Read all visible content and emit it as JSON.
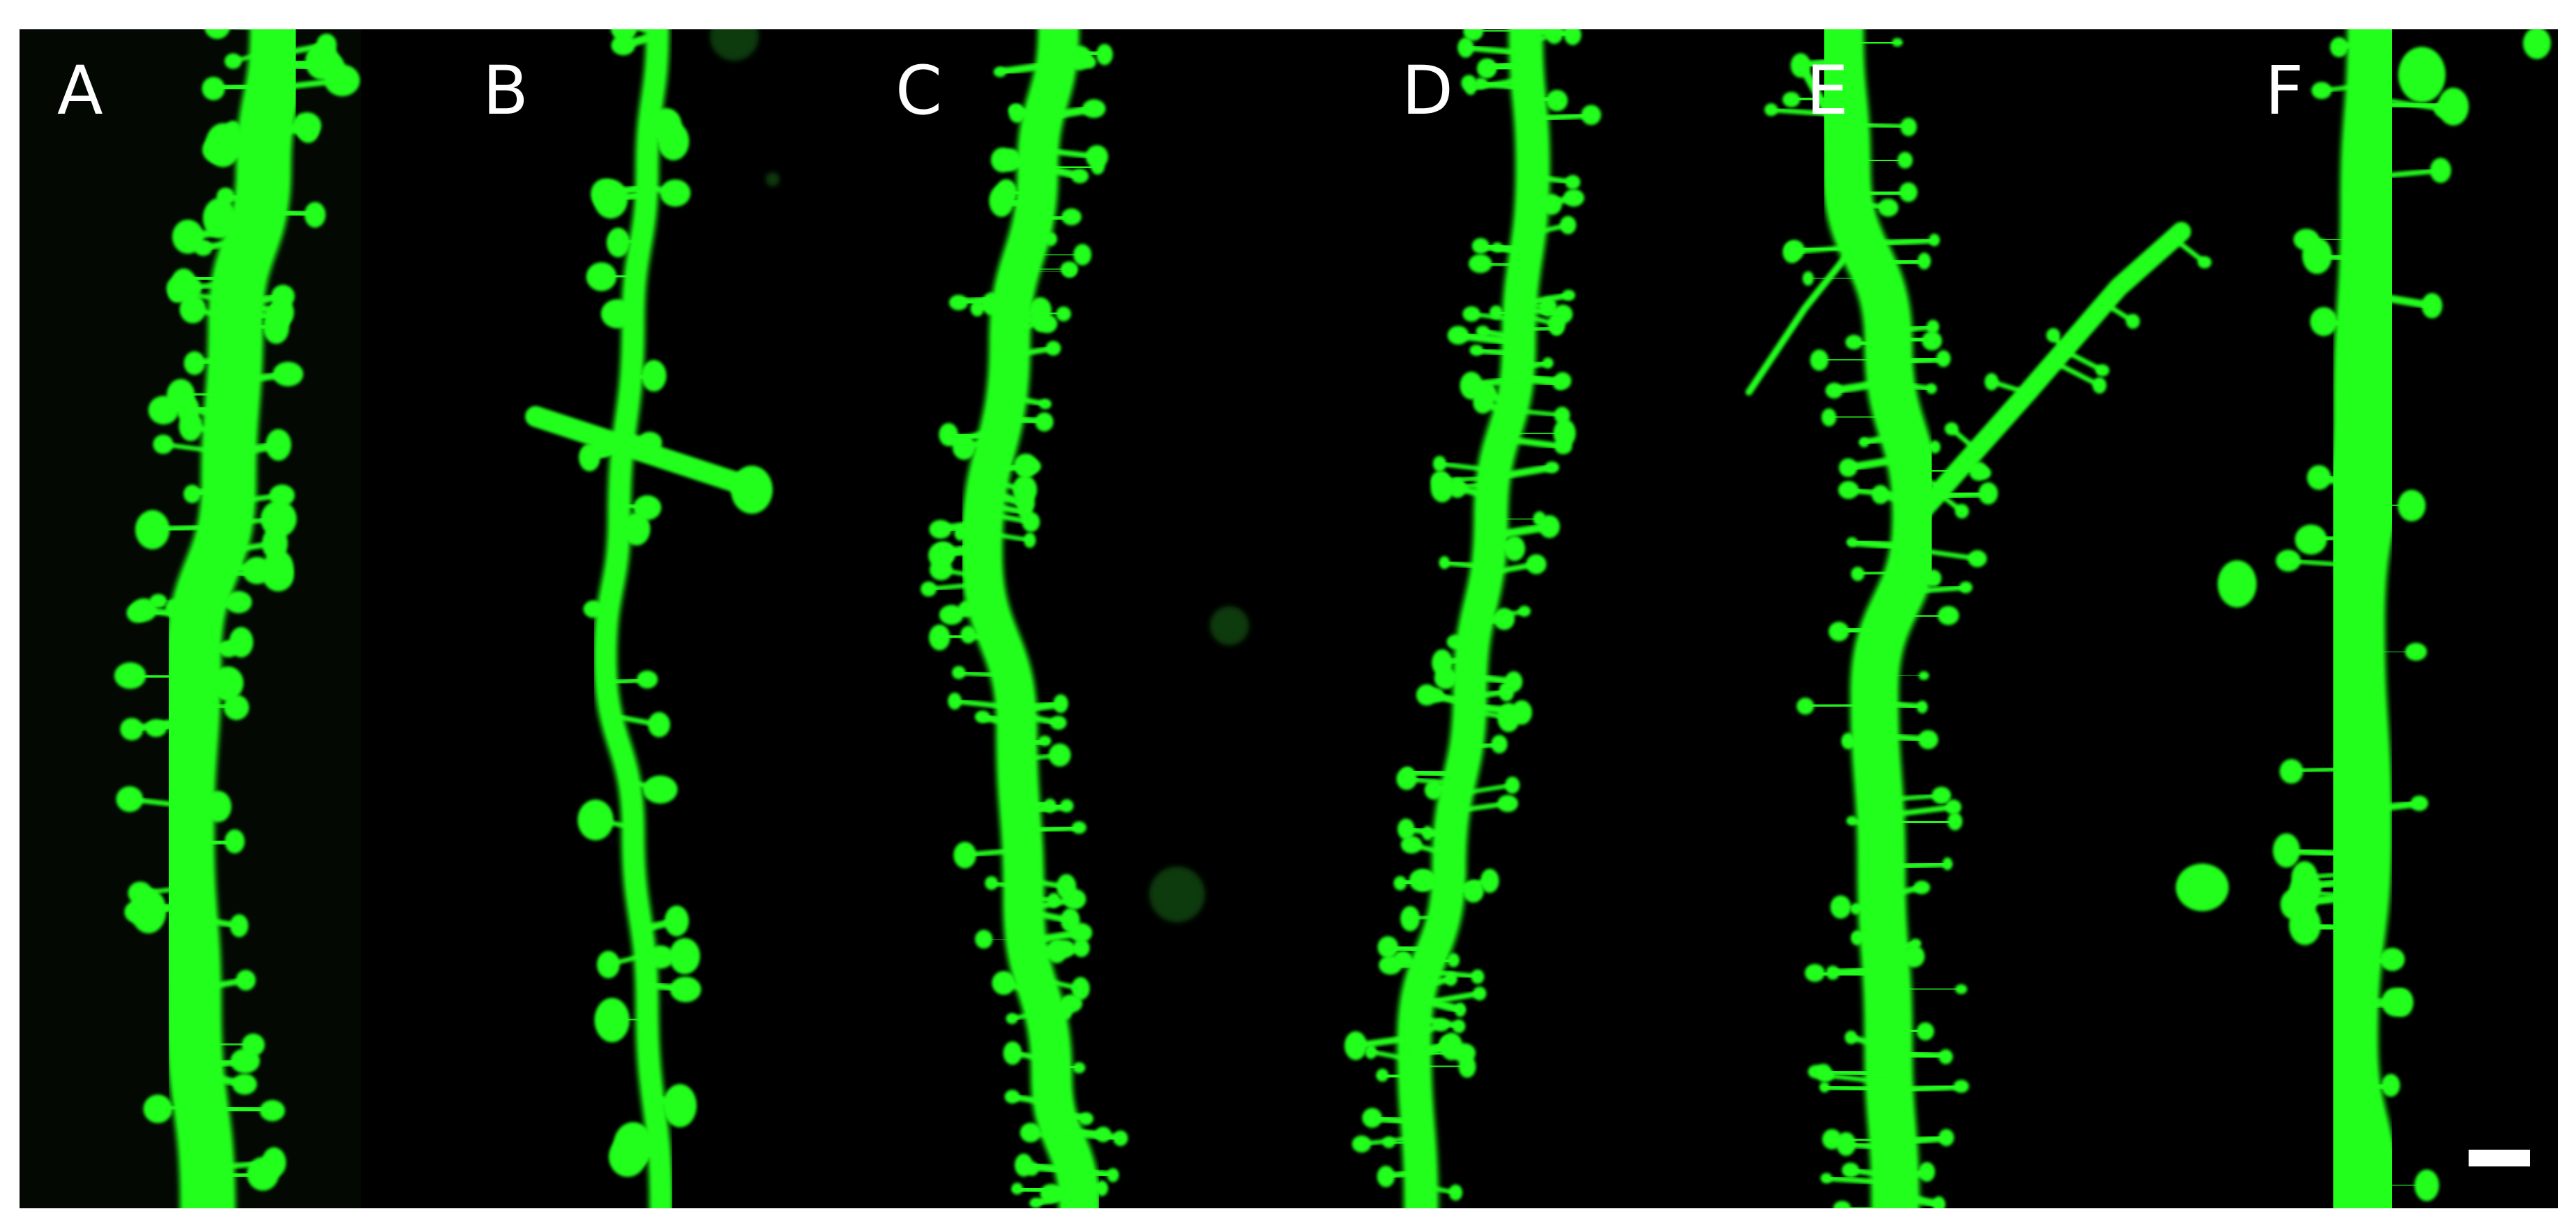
{
  "panels": [
    {
      "label": "A"
    },
    {
      "label": "B"
    },
    {
      "label": "C"
    },
    {
      "label": "D"
    },
    {
      "label": "E"
    },
    {
      "label": "F"
    }
  ],
  "colors": {
    "background": "#000000",
    "fluorescence": "#22ff1e",
    "label": "#ffffff",
    "border": "#ffffff"
  },
  "scale_bar": {
    "visible": true
  }
}
